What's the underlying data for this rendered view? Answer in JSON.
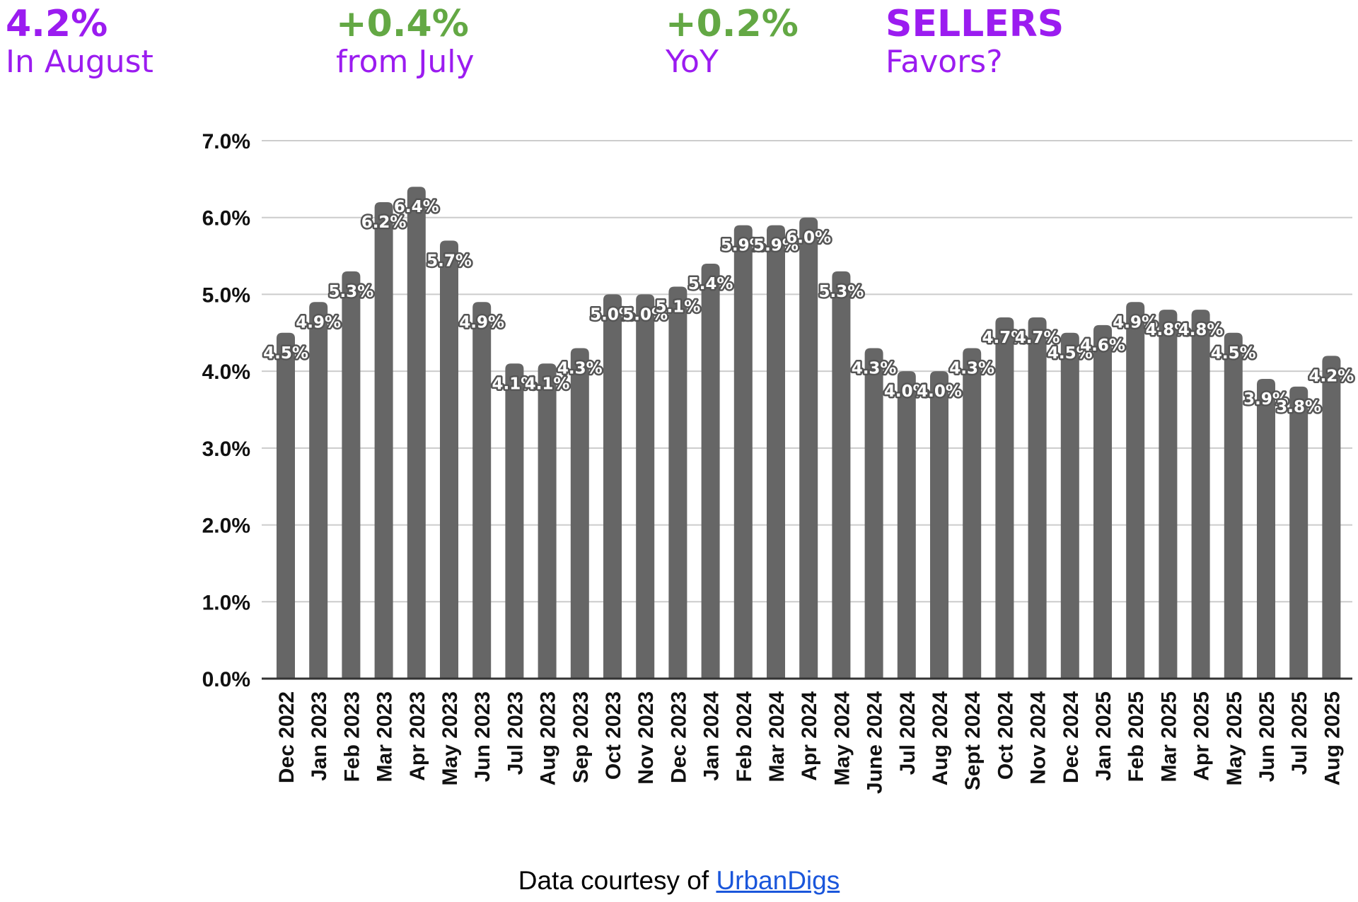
{
  "stats": [
    {
      "value": "4.2%",
      "label": "In August",
      "value_color": "#9b1cf0",
      "label_color": "#9b1cf0"
    },
    {
      "value": "+0.4%",
      "label": "from July",
      "value_color": "#63a844",
      "label_color": "#9b1cf0"
    },
    {
      "value": "+0.2%",
      "label": "YoY",
      "value_color": "#63a844",
      "label_color": "#9b1cf0"
    },
    {
      "value": "SELLERS",
      "label": "Favors?",
      "value_color": "#9b1cf0",
      "label_color": "#9b1cf0"
    }
  ],
  "credit": {
    "prefix": "Data courtesy of ",
    "link": "UrbanDigs"
  },
  "colors": {
    "bar": "#666666",
    "grid": "#cccccc",
    "axis": "#333333"
  },
  "chart_data": {
    "type": "bar",
    "categories": [
      "Dec 2022",
      "Jan 2023",
      "Feb 2023",
      "Mar 2023",
      "Apr 2023",
      "May 2023",
      "Jun 2023",
      "Jul 2023",
      "Aug 2023",
      "Sep 2023",
      "Oct 2023",
      "Nov 2023",
      "Dec 2023",
      "Jan 2024",
      "Feb 2024",
      "Mar 2024",
      "Apr 2024",
      "May 2024",
      "June 2024",
      "Jul 2024",
      "Aug 2024",
      "Sept 2024",
      "Oct 2024",
      "Nov 2024",
      "Dec 2024",
      "Jan 2025",
      "Feb 2025",
      "Mar 2025",
      "Apr 2025",
      "May 2025",
      "Jun 2025",
      "Jul 2025",
      "Aug 2025"
    ],
    "values": [
      4.5,
      4.9,
      5.3,
      6.2,
      6.4,
      5.7,
      4.9,
      4.1,
      4.1,
      4.3,
      5.0,
      5.0,
      5.1,
      5.4,
      5.9,
      5.9,
      6.0,
      5.3,
      4.3,
      4.0,
      4.0,
      4.3,
      4.7,
      4.7,
      4.5,
      4.6,
      4.9,
      4.8,
      4.8,
      4.5,
      3.9,
      3.8,
      4.2
    ],
    "data_labels": [
      "4.5%",
      "4.9%",
      "5.3%",
      "6.2%",
      "6.4%",
      "5.7%",
      "4.9%",
      "4.1%",
      "4.1%",
      "4.3%",
      "5.0%",
      "5.0%",
      "5.1%",
      "5.4%",
      "5.9%",
      "5.9%",
      "6.0%",
      "5.3%",
      "4.3%",
      "4.0%",
      "4.0%",
      "4.3%",
      "4.7%",
      "4.7%",
      "4.5%",
      "4.6%",
      "4.9%",
      "4.8%",
      "4.8%",
      "4.5%",
      "3.9%",
      "3.8%",
      "4.2%"
    ],
    "yticks": [
      "0.0%",
      "1.0%",
      "2.0%",
      "3.0%",
      "4.0%",
      "5.0%",
      "6.0%",
      "7.0%"
    ],
    "ylim": [
      0,
      7
    ],
    "grid": true,
    "title": "",
    "xlabel": "",
    "ylabel": ""
  }
}
